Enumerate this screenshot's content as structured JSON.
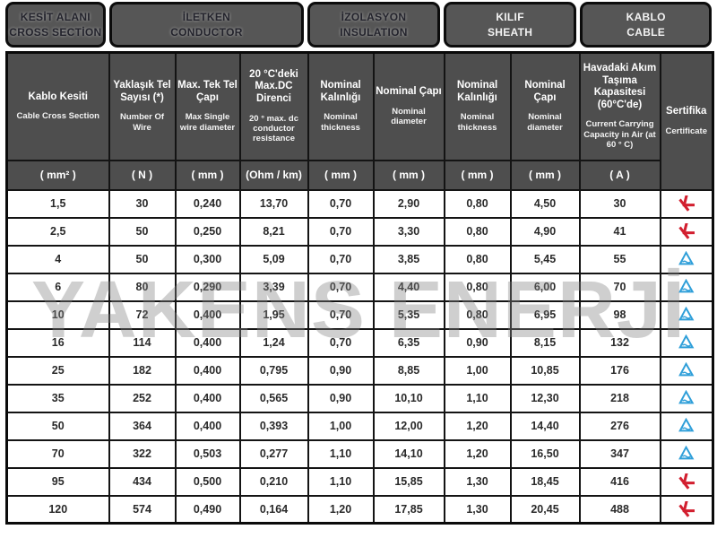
{
  "watermark": {
    "text": "YAKENS ENERJİ"
  },
  "colors": {
    "group_box_bg": "#565656",
    "header_bg": "#4e4e4e",
    "header_text": "#ffffff",
    "border": "#141414",
    "cert_red": "#d21f2f",
    "cert_blue": "#2f9fd9"
  },
  "table": {
    "groups": [
      {
        "tr": "KESİT ALANI",
        "en": "CROSS SECTİON",
        "text_tone": "dark"
      },
      {
        "tr": "İLETKEN",
        "en": "CONDUCTOR",
        "text_tone": "dark"
      },
      {
        "tr": "İZOLASYON",
        "en": "INSULATION",
        "text_tone": "dark"
      },
      {
        "tr": "KILIF",
        "en": "SHEATH",
        "text_tone": "light"
      },
      {
        "tr": "KABLO",
        "en": "CABLE",
        "text_tone": "light"
      }
    ],
    "columns": [
      {
        "tr": "Kablo Kesiti",
        "en": "Cable Cross Section",
        "unit": "( mm² )"
      },
      {
        "tr": "Yaklaşık Tel Sayısı (*)",
        "en": "Number Of Wire",
        "unit": "( N )"
      },
      {
        "tr": "Max. Tek Tel Çapı",
        "en": "Max Single wire diameter",
        "unit": "( mm )"
      },
      {
        "tr": "20 °C'deki Max.DC Direnci",
        "en": "20 ° max. dc conductor resistance",
        "unit": "(Ohm / km)"
      },
      {
        "tr": "Nominal Kalınlığı",
        "en": "Nominal thickness",
        "unit": "( mm )"
      },
      {
        "tr": "Nominal Çapı",
        "en": "Nominal diameter",
        "unit": "( mm )"
      },
      {
        "tr": "Nominal Kalınlığı",
        "en": "Nominal thickness",
        "unit": "( mm )"
      },
      {
        "tr": "Nominal Çapı",
        "en": "Nominal diameter",
        "unit": "( mm )"
      },
      {
        "tr": "Havadaki Akım Taşıma Kapasitesi (60°C'de)",
        "en": "Current Carrying Capacity in Air (at 60 ° C)",
        "unit": "( A )"
      },
      {
        "tr": "Sertifika",
        "en": "Certificate"
      }
    ],
    "rows": [
      {
        "values": [
          "1,5",
          "30",
          "0,240",
          "13,70",
          "0,70",
          "2,90",
          "0,80",
          "4,50",
          "30"
        ],
        "certificate": "red"
      },
      {
        "values": [
          "2,5",
          "50",
          "0,250",
          "8,21",
          "0,70",
          "3,30",
          "0,80",
          "4,90",
          "41"
        ],
        "certificate": "red"
      },
      {
        "values": [
          "4",
          "50",
          "0,300",
          "5,09",
          "0,70",
          "3,85",
          "0,80",
          "5,45",
          "55"
        ],
        "certificate": "blue"
      },
      {
        "values": [
          "6",
          "80",
          "0,290",
          "3,39",
          "0,70",
          "4,40",
          "0,80",
          "6,00",
          "70"
        ],
        "certificate": "blue"
      },
      {
        "values": [
          "10",
          "72",
          "0,400",
          "1,95",
          "0,70",
          "5,35",
          "0,80",
          "6,95",
          "98"
        ],
        "certificate": "blue"
      },
      {
        "values": [
          "16",
          "114",
          "0,400",
          "1,24",
          "0,70",
          "6,35",
          "0,90",
          "8,15",
          "132"
        ],
        "certificate": "blue"
      },
      {
        "values": [
          "25",
          "182",
          "0,400",
          "0,795",
          "0,90",
          "8,85",
          "1,00",
          "10,85",
          "176"
        ],
        "certificate": "blue"
      },
      {
        "values": [
          "35",
          "252",
          "0,400",
          "0,565",
          "0,90",
          "10,10",
          "1,10",
          "12,30",
          "218"
        ],
        "certificate": "blue"
      },
      {
        "values": [
          "50",
          "364",
          "0,400",
          "0,393",
          "1,00",
          "12,00",
          "1,20",
          "14,40",
          "276"
        ],
        "certificate": "blue"
      },
      {
        "values": [
          "70",
          "322",
          "0,503",
          "0,277",
          "1,10",
          "14,10",
          "1,20",
          "16,50",
          "347"
        ],
        "certificate": "blue"
      },
      {
        "values": [
          "95",
          "434",
          "0,500",
          "0,210",
          "1,10",
          "15,85",
          "1,30",
          "18,45",
          "416"
        ],
        "certificate": "red"
      },
      {
        "values": [
          "120",
          "574",
          "0,490",
          "0,164",
          "1,20",
          "17,85",
          "1,30",
          "20,45",
          "488"
        ],
        "certificate": "red"
      }
    ]
  }
}
